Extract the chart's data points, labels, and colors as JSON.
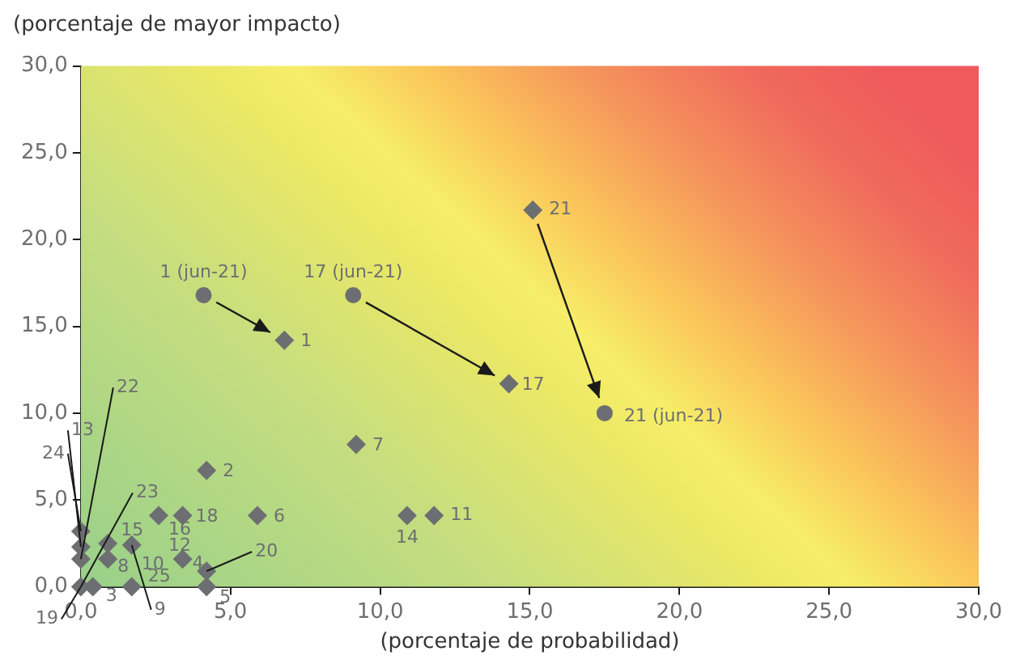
{
  "chart_data": {
    "type": "scatter",
    "ylabel": "(porcentaje de mayor impacto)",
    "xlabel": "(porcentaje de probabilidad)",
    "xlim": [
      0,
      30
    ],
    "ylim": [
      0,
      30
    ],
    "xticks": [
      {
        "value": 0,
        "label": "0,0"
      },
      {
        "value": 5,
        "label": "5,0"
      },
      {
        "value": 10,
        "label": "10,0"
      },
      {
        "value": 15,
        "label": "15,0"
      },
      {
        "value": 20,
        "label": "20,0"
      },
      {
        "value": 25,
        "label": "25,0"
      },
      {
        "value": 30,
        "label": "30,0"
      }
    ],
    "yticks": [
      {
        "value": 0,
        "label": "0,0"
      },
      {
        "value": 5,
        "label": "5,0"
      },
      {
        "value": 10,
        "label": "10,0"
      },
      {
        "value": 15,
        "label": "15,0"
      },
      {
        "value": 20,
        "label": "20,0"
      },
      {
        "value": 25,
        "label": "25,0"
      },
      {
        "value": 30,
        "label": "30,0"
      }
    ],
    "grid": false,
    "legend": false,
    "series": [
      {
        "color": "#6d6e71",
        "marker": "diamond",
        "x": [
          6.8,
          14.3,
          15.1,
          4.2,
          5.9,
          9.2,
          11.8,
          10.9,
          3.4,
          2.6,
          3.4,
          4.2,
          4.2,
          1.7,
          0.4,
          0.9,
          0.9,
          1.7,
          0,
          0,
          0,
          0
        ],
        "values": [
          14.2,
          11.7,
          21.7,
          6.7,
          4.1,
          8.2,
          4.1,
          4.1,
          4.1,
          4.1,
          1.6,
          0.9,
          0,
          0,
          0,
          1.6,
          2.5,
          2.4,
          3.2,
          2.3,
          1.6,
          0
        ]
      },
      {
        "color": "#6d6e71",
        "marker": "circle",
        "x": [
          4.1,
          9.1,
          17.5
        ],
        "values": [
          16.8,
          16.8,
          10.0
        ]
      }
    ],
    "annotations": [
      {
        "text": "1 (jun-21)",
        "x": 4.1,
        "y": 16.8
      },
      {
        "text": "17 (jun-21)",
        "x": 9.1,
        "y": 16.8
      },
      {
        "text": "21 (jun-21)",
        "x": 17.5,
        "y": 10.0
      },
      {
        "text": "1",
        "x": 6.8,
        "y": 14.2
      },
      {
        "text": "2",
        "x": 4.2,
        "y": 6.7
      },
      {
        "text": "6",
        "x": 5.9,
        "y": 4.1
      },
      {
        "text": "7",
        "x": 9.2,
        "y": 8.2
      },
      {
        "text": "11",
        "x": 11.8,
        "y": 4.1
      },
      {
        "text": "14",
        "x": 10.9,
        "y": 4.1
      },
      {
        "text": "17",
        "x": 14.3,
        "y": 11.7
      },
      {
        "text": "21",
        "x": 15.1,
        "y": 21.7
      },
      {
        "text": "18",
        "x": 3.4,
        "y": 4.1
      },
      {
        "text": "16",
        "x": 2.6,
        "y": 4.1
      },
      {
        "text": "12",
        "x": 2.6,
        "y": 4.1
      },
      {
        "text": "4",
        "x": 3.4,
        "y": 1.6
      },
      {
        "text": "20",
        "x": 4.2,
        "y": 0.9
      },
      {
        "text": "5",
        "x": 4.2,
        "y": 0
      },
      {
        "text": "25",
        "x": 1.7,
        "y": 0
      },
      {
        "text": "3",
        "x": 0.4,
        "y": 0
      },
      {
        "text": "8",
        "x": 0.9,
        "y": 1.6
      },
      {
        "text": "15",
        "x": 0.9,
        "y": 2.5
      },
      {
        "text": "10",
        "x": 1.7,
        "y": 2.4
      },
      {
        "text": "9",
        "x": 1.7,
        "y": 2.4
      },
      {
        "text": "24",
        "x": 0,
        "y": 3.2
      },
      {
        "text": "13",
        "x": 0,
        "y": 2.3
      },
      {
        "text": "22",
        "x": 0,
        "y": 1.6
      },
      {
        "text": "23",
        "x": 0,
        "y": 0
      },
      {
        "text": "19",
        "x": 0,
        "y": 0
      }
    ]
  }
}
